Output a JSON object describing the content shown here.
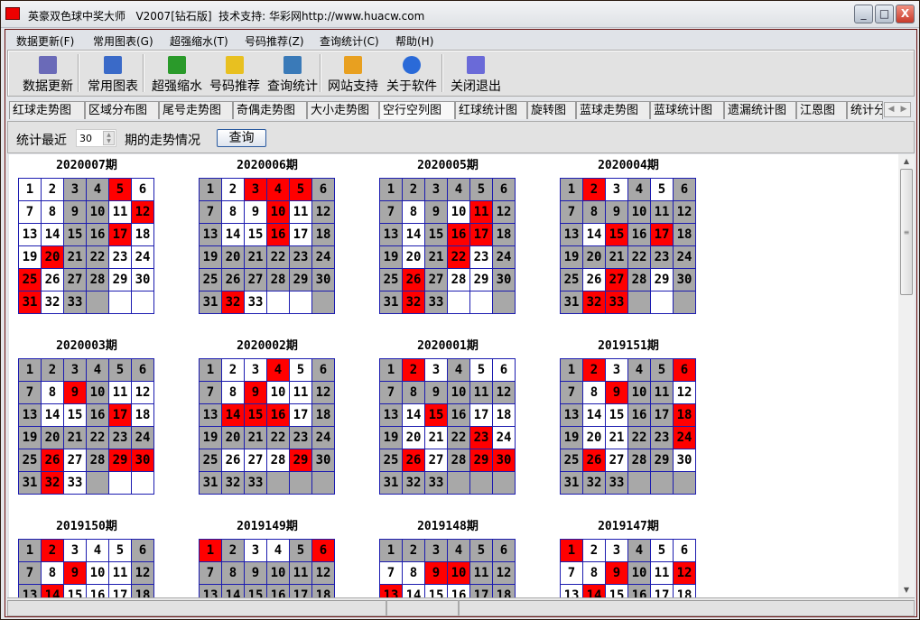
{
  "window": {
    "title": "英豪双色球中奖大师   V2007[钻石版]  技术支持: 华彩网http://www.huacw.com",
    "buttons": {
      "minimize": "_",
      "maximize": "□",
      "close": "X"
    }
  },
  "menu": [
    "数据更新(F)",
    "常用图表(G)",
    "超强缩水(T)",
    "号码推荐(Z)",
    "查询统计(C)",
    "帮助(H)"
  ],
  "toolbar": [
    {
      "label": "数据更新",
      "icon": "book-update-icon",
      "color": "#6a6ab8"
    },
    {
      "label": "常用图表",
      "icon": "chart-grid-icon",
      "color": "#3a6ac8"
    },
    {
      "label": "超强缩水",
      "icon": "green-book-gear-icon",
      "color": "#2a9a2a"
    },
    {
      "label": "号码推荐",
      "icon": "coins-hand-icon",
      "color": "#e8c020"
    },
    {
      "label": "查询统计",
      "icon": "statistics-chart-icon",
      "color": "#3a7ab8"
    },
    {
      "label": "网站支持",
      "icon": "home-icon",
      "color": "#e8a020"
    },
    {
      "label": "关于软件",
      "icon": "info-icon",
      "color": "#2a6ad8"
    },
    {
      "label": "关闭退出",
      "icon": "exit-door-icon",
      "color": "#6a6ad8"
    }
  ],
  "tabs": [
    "红球走势图",
    "区域分布图",
    "尾号走势图",
    "奇偶走势图",
    "大小走势图",
    "空行空列图",
    "红球统计图",
    "旋转图",
    "蓝球走势图",
    "蓝球统计图",
    "遗漏统计图",
    "江恩图",
    "统计分"
  ],
  "active_tab": "空行空列图",
  "query": {
    "label_before": "统计最近",
    "periods": "30",
    "label_after": "期的走势情况",
    "button": "查询"
  },
  "numbers": [
    1,
    2,
    3,
    4,
    5,
    6,
    7,
    8,
    9,
    10,
    11,
    12,
    13,
    14,
    15,
    16,
    17,
    18,
    19,
    20,
    21,
    22,
    23,
    24,
    25,
    26,
    27,
    28,
    29,
    30,
    31,
    32,
    33
  ],
  "colors": {
    "W": "#ffffff",
    "G": "#a8a8a8",
    "R": "#ff0000",
    "grid_border": "#1c1cb0"
  },
  "legend_codes": {
    "W": "white",
    "G": "gray",
    "R": "red (drawn number)"
  },
  "grids": [
    {
      "period": "2020007期",
      "rows": [
        "WWGGRW",
        "WWGGWR",
        "WWGGRW",
        "WRGGWW",
        "RWGGWW",
        "RWGGWW"
      ]
    },
    {
      "period": "2020006期",
      "rows": [
        "GWRRRG",
        "GWWRWG",
        "GWWRWG",
        "GGGGGG",
        "GGGGGG",
        "GRWWWG"
      ]
    },
    {
      "period": "2020005期",
      "rows": [
        "GGGGGG",
        "GWGWRG",
        "GWGRRG",
        "GWGRWG",
        "GRGWWG",
        "GRGWWG"
      ]
    },
    {
      "period": "2020004期",
      "rows": [
        "GRWGWG",
        "GGGGGG",
        "GWRGRG",
        "GGGGGG",
        "GWRGWG",
        "GRRGWG"
      ]
    },
    {
      "period": "2020003期",
      "rows": [
        "GGGGGG",
        "GWRGWW",
        "GWWGRW",
        "GGGGGG",
        "GRWGRR",
        "GRWGWW"
      ]
    },
    {
      "period": "2020002期",
      "rows": [
        "GWWRWG",
        "GWRWWG",
        "GRRRWG",
        "GGGGGG",
        "GWWWRG",
        "GGGGGG"
      ]
    },
    {
      "period": "2020001期",
      "rows": [
        "GRWGWW",
        "GGGGGG",
        "GWRGWW",
        "GWWGRW",
        "GRWGRR",
        "GGGGGG"
      ]
    },
    {
      "period": "2019151期",
      "rows": [
        "GRWGGR",
        "GWRGGW",
        "GWWGGR",
        "GWWGGR",
        "GRWGGW",
        "GGGGGG"
      ]
    },
    {
      "period": "2019150期",
      "rows": [
        "GRWWWG",
        "GWRWWG",
        "GRWWWG"
      ]
    },
    {
      "period": "2019149期",
      "rows": [
        "RGWWGR",
        "GGGGGG",
        "GGGGGG"
      ]
    },
    {
      "period": "2019148期",
      "rows": [
        "GGGGGG",
        "WWRRGG",
        "RWWWGG"
      ]
    },
    {
      "period": "2019147期",
      "rows": [
        "RWWGWW",
        "WWRGWR",
        "WRWGWW"
      ]
    }
  ]
}
